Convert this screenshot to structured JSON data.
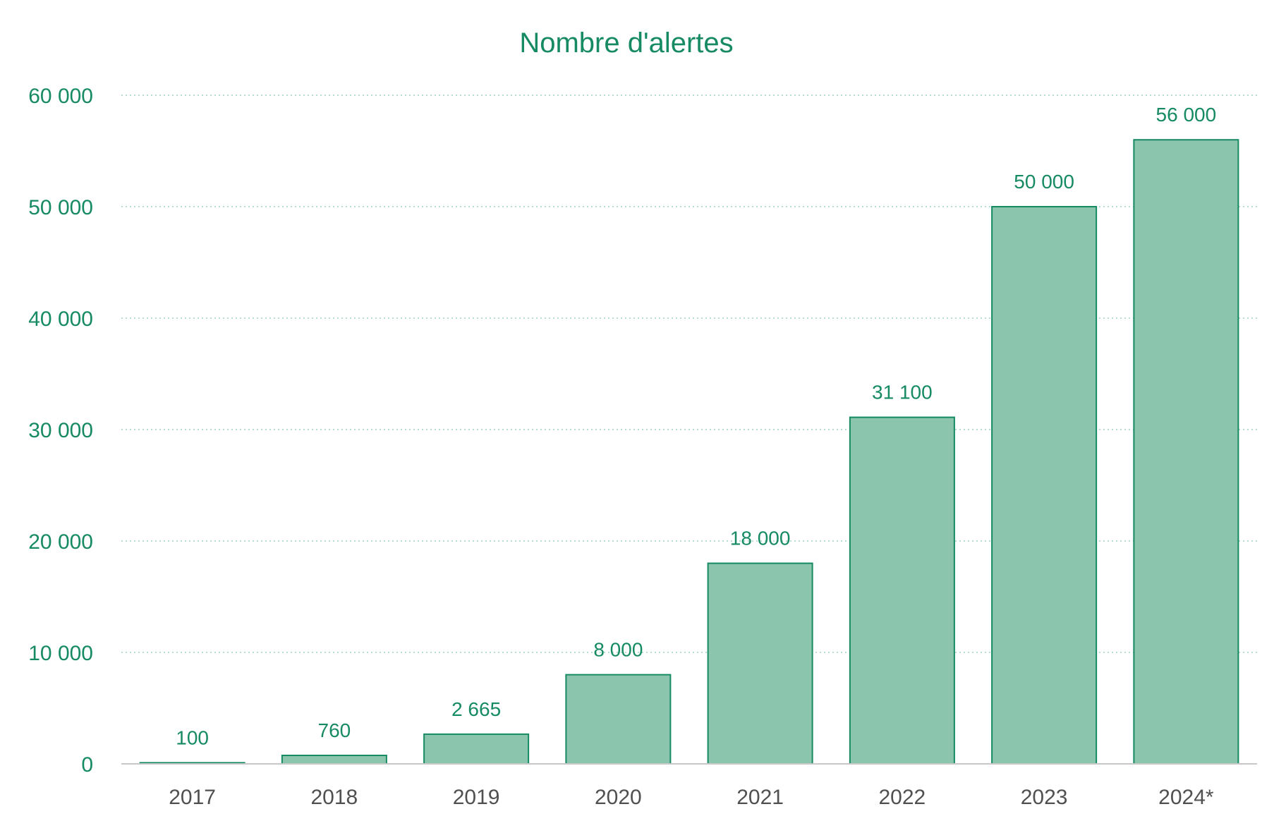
{
  "chart_data": {
    "type": "bar",
    "title": "Nombre d'alertes",
    "xlabel": "",
    "ylabel": "",
    "categories": [
      "2017",
      "2018",
      "2019",
      "2020",
      "2021",
      "2022",
      "2023",
      "2024*"
    ],
    "values": [
      100,
      760,
      2665,
      8000,
      18000,
      31100,
      50000,
      56000
    ],
    "value_labels": [
      "100",
      "760",
      "2 665",
      "8 000",
      "18 000",
      "31 100",
      "50 000",
      "56 000"
    ],
    "ylim": [
      0,
      60000
    ],
    "yticks": [
      0,
      10000,
      20000,
      30000,
      40000,
      50000,
      60000
    ],
    "ytick_labels": [
      "0",
      "10 000",
      "20 000",
      "30 000",
      "40 000",
      "50 000",
      "60 000"
    ],
    "grid": true,
    "legend": "none",
    "colors": {
      "bar_fill": "#8cc5ad",
      "bar_edge": "#168a62",
      "text_accent": "#168a62",
      "text_axis": "#505050"
    }
  }
}
